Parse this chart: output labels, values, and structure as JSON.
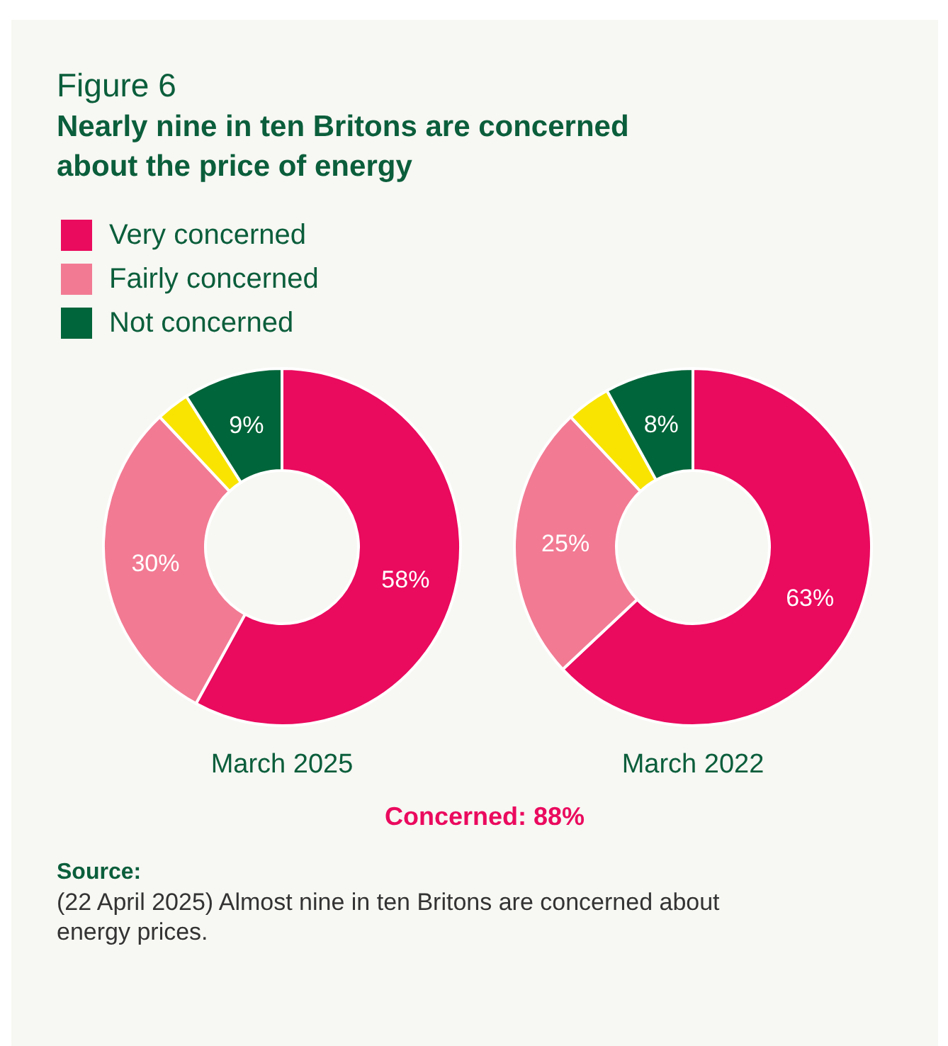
{
  "chart_data": [
    {
      "type": "donut",
      "title": "Figure 6",
      "subtitle": "Nearly nine in ten Britons are concerned about the price of energy",
      "xlabel": "March 2025",
      "legend": "top left",
      "categories": [
        "Very concerned",
        "Fairly concerned",
        null,
        "Not concerned"
      ],
      "values": [
        58,
        30,
        3,
        9
      ],
      "colors": [
        "#ea0a5e",
        "#f27a93",
        "#f8e400",
        "#00653a"
      ],
      "value_labels": [
        "58%",
        "30%",
        null,
        "9%"
      ],
      "annotations": [
        "Concerned: 88%",
        "Source:",
        "(22 April 2025) Almost nine in ten Britons are concerned about energy prices."
      ]
    },
    {
      "type": "donut",
      "xlabel": "March 2022",
      "categories": [
        null,
        null,
        null,
        null
      ],
      "values": [
        63,
        25,
        4,
        8
      ],
      "colors": [
        "#ea0a5e",
        "#f27a93",
        "#f8e400",
        "#00653a"
      ],
      "value_labels": [
        "63%",
        "25%",
        null,
        "8%"
      ]
    }
  ]
}
